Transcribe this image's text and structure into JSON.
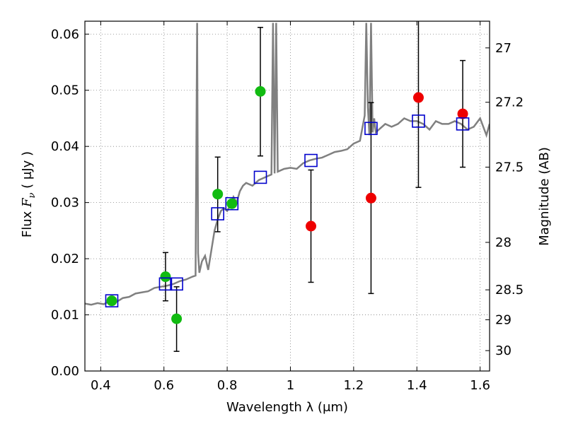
{
  "chart_data": {
    "type": "scatter",
    "xlabel": "Wavelength  λ (μm)",
    "ylabel": "Flux  F_ν  ( μJy )",
    "ylabel_parts": {
      "pre": "Flux  ",
      "sym": "F",
      "sub": "ν",
      "post": "  ( μJy )"
    },
    "y2label": "Magnitude (AB)",
    "xlim": [
      0.35,
      1.63
    ],
    "ylim": [
      0.0,
      0.0623
    ],
    "xticks": [
      0.4,
      0.6,
      0.8,
      1.0,
      1.2,
      1.4,
      1.6
    ],
    "xtick_labels": [
      "0.4",
      "0.6",
      "0.8",
      "1",
      "1.2",
      "1.4",
      "1.6"
    ],
    "yticks": [
      0.0,
      0.01,
      0.02,
      0.03,
      0.04,
      0.05,
      0.06
    ],
    "ytick_labels": [
      "0.00",
      "0.01",
      "0.02",
      "0.03",
      "0.04",
      "0.05",
      "0.06"
    ],
    "y2ticks": [
      {
        "mag": 27,
        "label": "27"
      },
      {
        "mag": 27.2,
        "label": "27.2"
      },
      {
        "mag": 27.5,
        "label": "27.5"
      },
      {
        "mag": 28,
        "label": "28"
      },
      {
        "mag": 28.5,
        "label": "28.5"
      },
      {
        "mag": 29,
        "label": "29"
      },
      {
        "mag": 30,
        "label": "30"
      }
    ],
    "grid": true,
    "colors": {
      "spectrum": "#808080",
      "model": "#0000cc",
      "optical": "#11bb11",
      "infrared": "#ee0000",
      "errorbar": "#000000",
      "grid": "#808080"
    },
    "series": [
      {
        "kind": "line",
        "x": [
          0.35,
          0.37,
          0.39,
          0.41,
          0.43,
          0.45,
          0.47,
          0.49,
          0.51,
          0.53,
          0.55,
          0.57,
          0.59,
          0.61,
          0.63,
          0.65,
          0.67,
          0.69,
          0.7,
          0.705,
          0.708,
          0.712,
          0.72,
          0.73,
          0.74,
          0.75,
          0.76,
          0.77,
          0.78,
          0.79,
          0.8,
          0.81,
          0.82,
          0.83,
          0.84,
          0.85,
          0.86,
          0.88,
          0.9,
          0.92,
          0.94,
          0.945,
          0.95,
          0.955,
          0.96,
          0.98,
          1.0,
          1.02,
          1.04,
          1.06,
          1.08,
          1.1,
          1.12,
          1.14,
          1.16,
          1.18,
          1.2,
          1.22,
          1.235,
          1.24,
          1.245,
          1.25,
          1.255,
          1.26,
          1.265,
          1.27,
          1.28,
          1.3,
          1.32,
          1.34,
          1.36,
          1.38,
          1.4,
          1.42,
          1.44,
          1.46,
          1.48,
          1.5,
          1.52,
          1.54,
          1.56,
          1.58,
          1.6,
          1.62,
          1.63
        ],
        "values": [
          0.012,
          0.0118,
          0.0121,
          0.0119,
          0.0125,
          0.0123,
          0.013,
          0.0132,
          0.0138,
          0.014,
          0.0142,
          0.0148,
          0.015,
          0.0152,
          0.0155,
          0.016,
          0.0163,
          0.0168,
          0.017,
          0.062,
          0.021,
          0.0175,
          0.0195,
          0.0205,
          0.018,
          0.0215,
          0.025,
          0.027,
          0.0285,
          0.029,
          0.0285,
          0.0295,
          0.031,
          0.03,
          0.032,
          0.033,
          0.0335,
          0.033,
          0.034,
          0.0345,
          0.035,
          0.062,
          0.0352,
          0.062,
          0.0355,
          0.036,
          0.0362,
          0.036,
          0.037,
          0.0375,
          0.0378,
          0.038,
          0.0385,
          0.039,
          0.0392,
          0.0395,
          0.0405,
          0.041,
          0.0455,
          0.062,
          0.047,
          0.042,
          0.062,
          0.0425,
          0.045,
          0.0425,
          0.043,
          0.044,
          0.0435,
          0.044,
          0.045,
          0.0445,
          0.0445,
          0.044,
          0.043,
          0.0445,
          0.044,
          0.044,
          0.0445,
          0.044,
          0.043,
          0.0435,
          0.045,
          0.042,
          0.044
        ]
      },
      {
        "kind": "model-squares",
        "x": [
          0.435,
          0.605,
          0.64,
          0.77,
          0.815,
          0.905,
          1.065,
          1.255,
          1.405,
          1.545
        ],
        "values": [
          0.0125,
          0.0155,
          0.0155,
          0.028,
          0.0298,
          0.0345,
          0.0375,
          0.0432,
          0.0445,
          0.044
        ]
      },
      {
        "kind": "optical-points",
        "x": [
          0.435,
          0.605,
          0.64,
          0.77,
          0.815,
          0.905
        ],
        "values": [
          0.0125,
          0.0168,
          0.0093,
          0.0315,
          0.0298,
          0.0498
        ],
        "err_low": [
          null,
          0.0125,
          0.0035,
          0.0248,
          null,
          0.0383
        ],
        "err_high": [
          null,
          0.0211,
          0.015,
          0.0381,
          null,
          0.0612
        ]
      },
      {
        "kind": "infrared-points",
        "x": [
          1.065,
          1.255,
          1.405,
          1.545
        ],
        "values": [
          0.0258,
          0.0308,
          0.0487,
          0.0458
        ],
        "err_low": [
          0.0158,
          0.0138,
          0.0327,
          0.0363
        ],
        "err_high": [
          0.0358,
          0.0478,
          0.0623,
          0.0553
        ]
      }
    ]
  }
}
